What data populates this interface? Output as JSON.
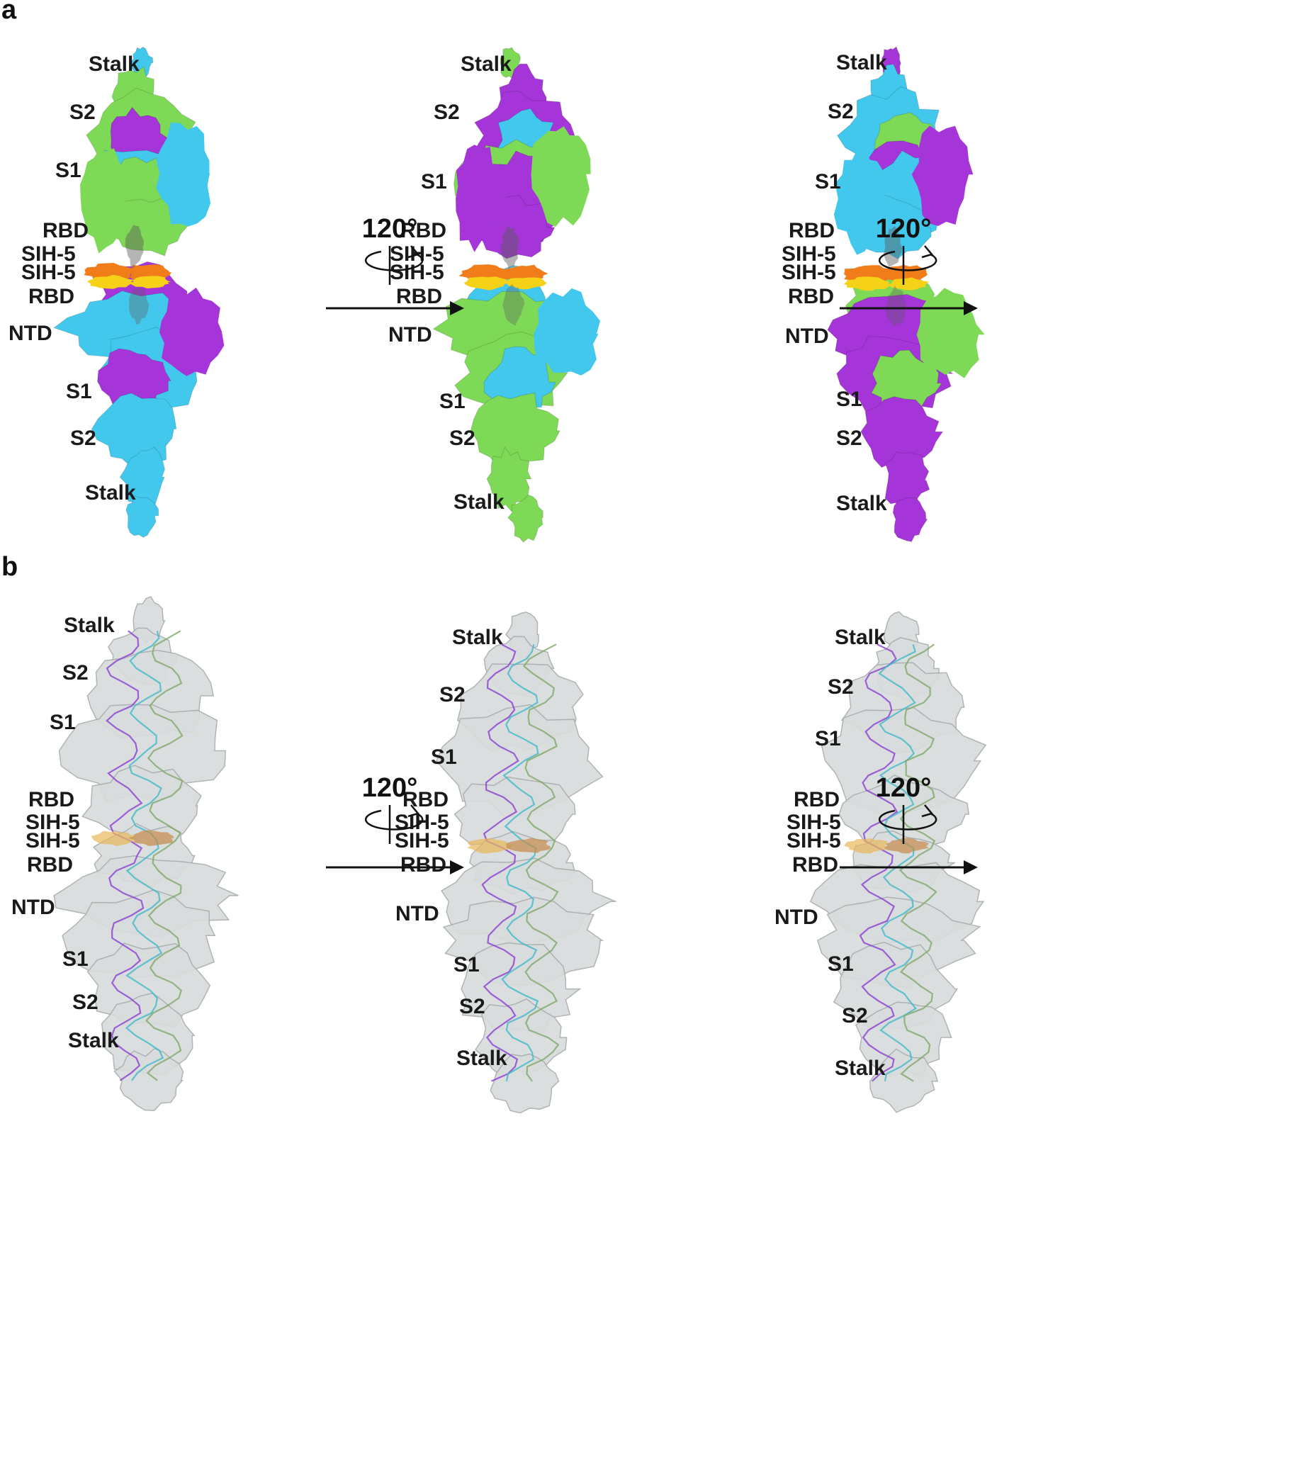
{
  "panels": [
    {
      "id": "a",
      "label": "a",
      "style": "surface",
      "rotation_labels": [
        "120°",
        "120°"
      ],
      "views": [
        {
          "labels": [
            "Stalk",
            "S2",
            "S1",
            "RBD",
            "SIH-5",
            "SIH-5",
            "RBD",
            "NTD",
            "S1",
            "S2",
            "Stalk"
          ],
          "colors": {
            "top": "#7ed957",
            "mid": "#42c8ec",
            "bottom": "#42c8ec",
            "accent": "#a535d8"
          }
        },
        {
          "labels": [
            "Stalk",
            "S2",
            "S1",
            "RBD",
            "SIH-5",
            "SIH-5",
            "RBD",
            "NTD",
            "S1",
            "S2",
            "Stalk"
          ],
          "colors": {
            "top": "#a535d8",
            "mid": "#7ed957",
            "bottom": "#7ed957",
            "accent": "#42c8ec"
          }
        },
        {
          "labels": [
            "Stalk",
            "S2",
            "S1",
            "RBD",
            "SIH-5",
            "SIH-5",
            "RBD",
            "NTD",
            "S1",
            "S2",
            "Stalk"
          ],
          "colors": {
            "top": "#42c8ec",
            "mid": "#a535d8",
            "bottom": "#a535d8",
            "accent": "#7ed957"
          }
        }
      ]
    },
    {
      "id": "b",
      "label": "b",
      "style": "transparent-with-ribbons",
      "rotation_labels": [
        "120°",
        "120°"
      ],
      "views": [
        {
          "labels": [
            "Stalk",
            "S2",
            "S1",
            "RBD",
            "SIH-5",
            "SIH-5",
            "RBD",
            "NTD",
            "S1",
            "S2",
            "Stalk"
          ]
        },
        {
          "labels": [
            "Stalk",
            "S2",
            "S1",
            "RBD",
            "SIH-5",
            "SIH-5",
            "RBD",
            "NTD",
            "S1",
            "S2",
            "Stalk"
          ]
        },
        {
          "labels": [
            "Stalk",
            "S2",
            "S1",
            "RBD",
            "SIH-5",
            "SIH-5",
            "RBD",
            "NTD",
            "S1",
            "S2",
            "Stalk"
          ]
        }
      ]
    }
  ],
  "colors": {
    "green": "#7ed957",
    "cyan": "#42c8ec",
    "purple": "#a535d8",
    "orange": "#f07d1a",
    "yellow": "#f5d118",
    "gray_map": "#d9dcdc",
    "ribbon_cyan": "#3fb9c9",
    "ribbon_purple": "#8a3fd1",
    "ribbon_green": "#7fa86a"
  }
}
